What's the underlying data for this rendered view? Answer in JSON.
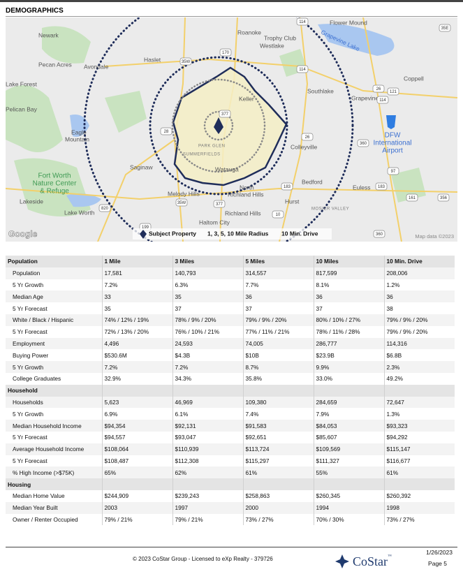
{
  "header": {
    "title": "DEMOGRAPHICS"
  },
  "map": {
    "places": [
      "Newark",
      "Pecan Acres",
      "Avondale",
      "Haslet",
      "Roanoke",
      "Trophy Club",
      "Westlake",
      "Flower Mound",
      "Grapevine Lake",
      "Coppell",
      "Southlake",
      "Grapevine",
      "Keller",
      "Lake Forest",
      "Pelican Bay",
      "Eagle",
      "Mountain",
      "DFW",
      "International",
      "Airport",
      "Colleyville",
      "PARK GLEN",
      "SUMMERFIELDS",
      "Saginaw",
      "Fort Worth",
      "Nature Center",
      "& Refuge",
      "Lakeside",
      "Lake Worth",
      "Melody Hills",
      "Watauga",
      "North",
      "Richland Hills",
      "Bedford",
      "Euless",
      "Hurst",
      "MOSIER VALLEY",
      "Richland Hills",
      "Haltom City"
    ],
    "shields": [
      "35E",
      "114",
      "170",
      "35W",
      "114",
      "26",
      "121",
      "114",
      "377",
      "28",
      "26",
      "360",
      "97",
      "183",
      "183",
      "161",
      "356",
      "35W",
      "820",
      "377",
      "10",
      "199",
      "360"
    ],
    "legend": [
      "Subject Property",
      "1, 3, 5, 10 Mile Radius",
      "10 Min. Drive"
    ],
    "logo": "Google",
    "attribution": "Map data ©2023"
  },
  "table": {
    "columns": [
      "1 Mile",
      "3 Miles",
      "5 Miles",
      "10 Miles",
      "10 Min. Drive"
    ],
    "sections": [
      {
        "title": "Population",
        "rows": [
          [
            "Population",
            "17,581",
            "140,793",
            "314,557",
            "817,599",
            "208,006"
          ],
          [
            "5 Yr Growth",
            "7.2%",
            "6.3%",
            "7.7%",
            "8.1%",
            "1.2%"
          ],
          [
            "Median Age",
            "33",
            "35",
            "36",
            "36",
            "36"
          ],
          [
            "5 Yr Forecast",
            "35",
            "37",
            "37",
            "37",
            "38"
          ],
          [
            "White / Black / Hispanic",
            "74% / 12% / 19%",
            "78% / 9% / 20%",
            "79% / 9% / 20%",
            "80% / 10% / 27%",
            "79% / 9% / 20%"
          ],
          [
            "5 Yr Forecast",
            "72% / 13% / 20%",
            "76% / 10% / 21%",
            "77% / 11% / 21%",
            "78% / 11% / 28%",
            "79% / 9% / 20%"
          ],
          [
            "Employment",
            "4,496",
            "24,593",
            "74,005",
            "286,777",
            "114,316"
          ],
          [
            "Buying Power",
            "$530.6M",
            "$4.3B",
            "$10B",
            "$23.9B",
            "$6.8B"
          ],
          [
            "5 Yr Growth",
            "7.2%",
            "7.2%",
            "8.7%",
            "9.9%",
            "2.3%"
          ],
          [
            "College Graduates",
            "32.9%",
            "34.3%",
            "35.8%",
            "33.0%",
            "49.2%"
          ]
        ]
      },
      {
        "title": "Household",
        "rows": [
          [
            "Households",
            "5,623",
            "46,969",
            "109,380",
            "284,659",
            "72,647"
          ],
          [
            "5 Yr Growth",
            "6.9%",
            "6.1%",
            "7.4%",
            "7.9%",
            "1.3%"
          ],
          [
            "Median Household Income",
            "$94,354",
            "$92,131",
            "$91,583",
            "$84,053",
            "$93,323"
          ],
          [
            "5 Yr Forecast",
            "$94,557",
            "$93,047",
            "$92,651",
            "$85,607",
            "$94,292"
          ],
          [
            "Average Household Income",
            "$108,064",
            "$110,939",
            "$113,724",
            "$109,569",
            "$115,147"
          ],
          [
            "5 Yr Forecast",
            "$108,487",
            "$112,308",
            "$115,297",
            "$111,327",
            "$116,677"
          ],
          [
            "% High Income (>$75K)",
            "65%",
            "62%",
            "61%",
            "55%",
            "61%"
          ]
        ]
      },
      {
        "title": "Housing",
        "rows": [
          [
            "Median Home Value",
            "$244,909",
            "$239,243",
            "$258,863",
            "$260,345",
            "$260,392"
          ],
          [
            "Median Year Built",
            "2003",
            "1997",
            "2000",
            "1994",
            "1998"
          ],
          [
            "Owner / Renter Occupied",
            "79% / 21%",
            "79% / 21%",
            "73% / 27%",
            "70% / 30%",
            "73% / 27%"
          ]
        ]
      }
    ]
  },
  "footer": {
    "copyright": "© 2023 CoStar Group - Licensed to eXp Realty - 379726",
    "date": "1/26/2023",
    "page": "Page 5",
    "logo": "CoStar",
    "tm": "™"
  }
}
